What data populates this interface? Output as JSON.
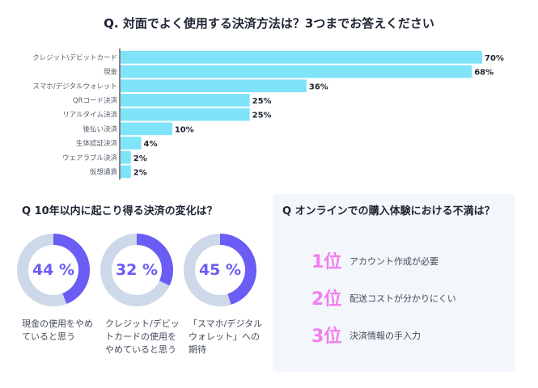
{
  "chart_data": {
    "type": "bar",
    "title": "Q. 対面でよく使用する決済方法は？3つまでお答えください",
    "categories": [
      "クレジット\\デビットカード",
      "現金",
      "スマホ/デジタルウォレット",
      "QRコード決済",
      "リアルタイム決済",
      "後払い決済",
      "生体認証決済",
      "ウェアラブル決済",
      "仮想通貨"
    ],
    "values": [
      70,
      68,
      36,
      25,
      25,
      10,
      4,
      2,
      2
    ],
    "value_labels": [
      "70%",
      "68%",
      "36%",
      "25%",
      "25%",
      "10%",
      "4%",
      "2%",
      "2%"
    ],
    "xlim": [
      0,
      70
    ],
    "color": "#7fe3fa"
  },
  "change": {
    "title": "Q 10年以内に起こり得る決済の変化は？",
    "items": [
      {
        "value": 44,
        "label": "44 %",
        "caption": "現金の使用をやめていると思う"
      },
      {
        "value": 32,
        "label": "32 %",
        "caption": "クレジット/デビットカードの使用をやめていると思う"
      },
      {
        "value": 45,
        "label": "45 %",
        "caption": "「スマホ/デジタルウォレット」への期待"
      }
    ],
    "color": "#6a5cf5",
    "track_color": "#cdd9e8"
  },
  "dissatisfaction": {
    "title": "Q オンラインでの購入体験における不満は？",
    "items": [
      {
        "rank": "1位",
        "text": "アカウント作成が必要"
      },
      {
        "rank": "2位",
        "text": "配送コストが分かりにくい"
      },
      {
        "rank": "3位",
        "text": "決済情報の手入力"
      }
    ],
    "rank_color": "#f07ef0"
  }
}
